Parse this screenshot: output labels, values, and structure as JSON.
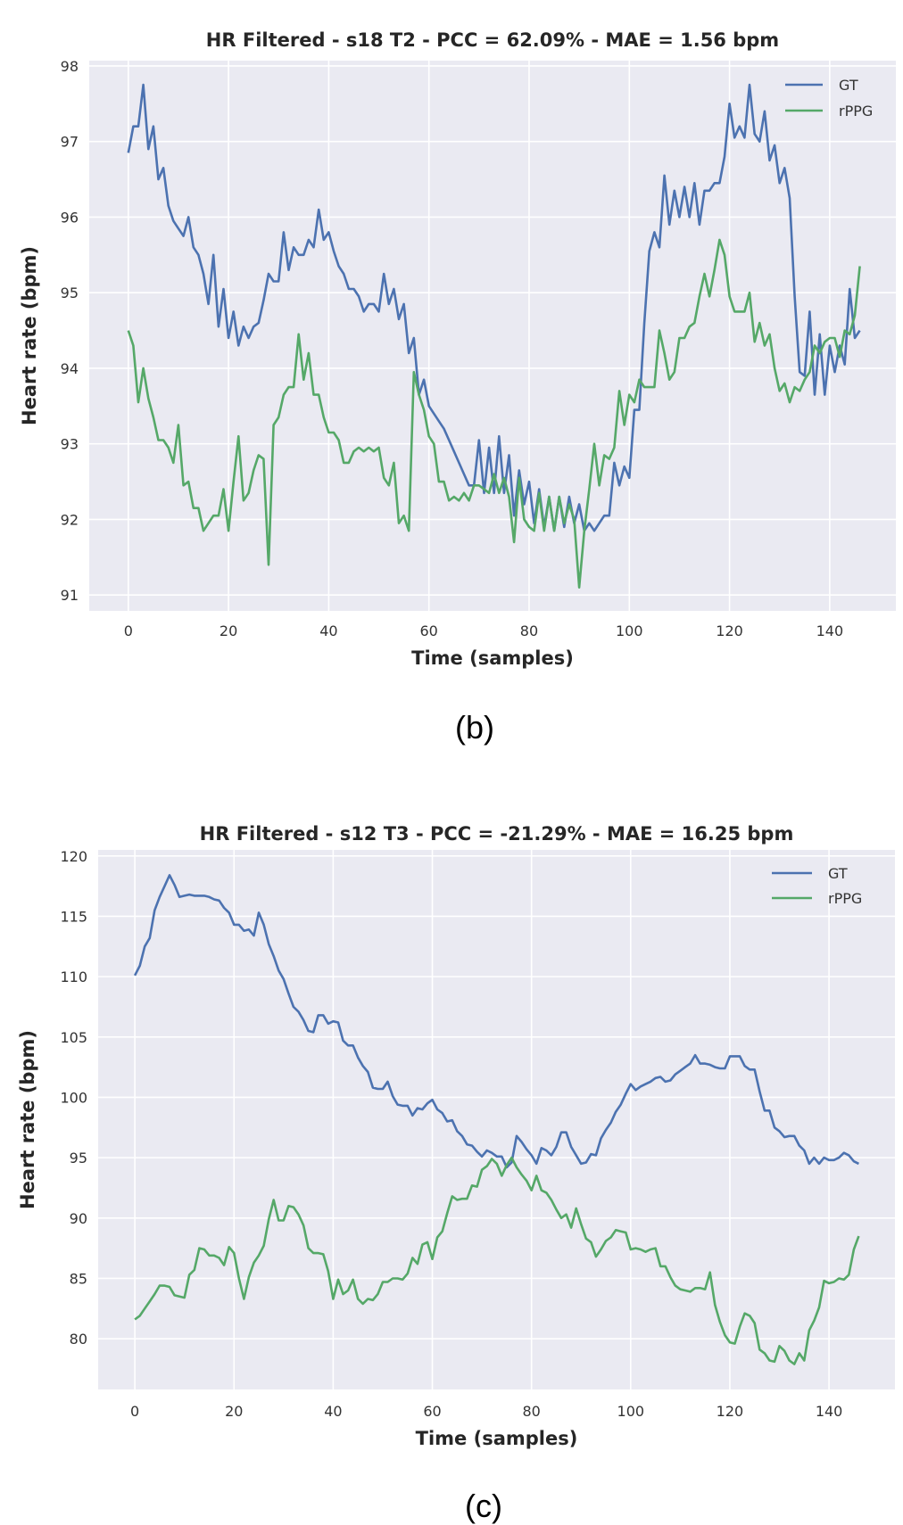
{
  "chart_data": [
    {
      "type": "line",
      "title": "HR Filtered - s18 T2 - PCC = 62.09% - MAE = 1.56 bpm",
      "xlabel": "Time (samples)",
      "ylabel": "Heart rate (bpm)",
      "caption": "(b)",
      "xlim": [
        -7.8,
        153.2
      ],
      "ylim": [
        90.79,
        98.07
      ],
      "xticks": [
        0,
        20,
        40,
        60,
        80,
        100,
        120,
        140
      ],
      "yticks": [
        91,
        92,
        93,
        94,
        95,
        96,
        97,
        98
      ],
      "grid": true,
      "legend": "top-right",
      "x_start": 0,
      "x_step": 1,
      "series": [
        {
          "name": "GT",
          "color": "#4c72b0",
          "values": [
            96.85,
            97.2,
            97.2,
            97.75,
            96.9,
            97.2,
            96.5,
            96.65,
            96.15,
            95.95,
            95.85,
            95.75,
            96.0,
            95.6,
            95.5,
            95.25,
            94.85,
            95.5,
            94.55,
            95.05,
            94.4,
            94.75,
            94.3,
            94.55,
            94.4,
            94.55,
            94.6,
            94.9,
            95.25,
            95.15,
            95.15,
            95.8,
            95.3,
            95.6,
            95.5,
            95.5,
            95.7,
            95.6,
            96.1,
            95.7,
            95.8,
            95.55,
            95.35,
            95.25,
            95.05,
            95.05,
            94.95,
            94.75,
            94.85,
            94.85,
            94.75,
            95.25,
            94.85,
            95.05,
            94.65,
            94.85,
            94.2,
            94.4,
            93.65,
            93.85,
            93.5,
            93.4,
            93.3,
            93.2,
            93.05,
            92.9,
            92.75,
            92.6,
            92.45,
            92.45,
            93.05,
            92.35,
            92.95,
            92.35,
            93.1,
            92.35,
            92.85,
            92.05,
            92.65,
            92.2,
            92.5,
            91.95,
            92.4,
            91.9,
            92.3,
            91.85,
            92.3,
            91.9,
            92.3,
            91.95,
            92.2,
            91.85,
            91.95,
            91.85,
            91.95,
            92.05,
            92.05,
            92.75,
            92.45,
            92.7,
            92.55,
            93.45,
            93.45,
            94.6,
            95.55,
            95.8,
            95.6,
            96.55,
            95.9,
            96.35,
            96.0,
            96.4,
            96.0,
            96.45,
            95.9,
            96.35,
            96.35,
            96.45,
            96.45,
            96.8,
            97.5,
            97.05,
            97.2,
            97.05,
            97.75,
            97.1,
            97.0,
            97.4,
            96.75,
            96.95,
            96.45,
            96.65,
            96.25,
            94.95,
            93.95,
            93.9,
            94.75,
            93.65,
            94.45,
            93.65,
            94.3,
            93.95,
            94.3,
            94.05,
            95.05,
            94.4,
            94.5
          ]
        },
        {
          "name": "rPPG",
          "color": "#55a868",
          "values": [
            94.5,
            94.3,
            93.55,
            94.0,
            93.6,
            93.35,
            93.05,
            93.05,
            92.95,
            92.75,
            93.25,
            92.45,
            92.5,
            92.15,
            92.15,
            91.85,
            91.95,
            92.05,
            92.05,
            92.4,
            91.85,
            92.5,
            93.1,
            92.25,
            92.35,
            92.65,
            92.85,
            92.8,
            91.4,
            93.25,
            93.35,
            93.65,
            93.75,
            93.75,
            94.45,
            93.85,
            94.2,
            93.65,
            93.65,
            93.35,
            93.15,
            93.15,
            93.05,
            92.75,
            92.75,
            92.9,
            92.95,
            92.9,
            92.95,
            92.9,
            92.95,
            92.55,
            92.45,
            92.75,
            91.95,
            92.05,
            91.85,
            93.95,
            93.65,
            93.45,
            93.1,
            93.0,
            92.5,
            92.5,
            92.25,
            92.3,
            92.25,
            92.35,
            92.25,
            92.45,
            92.45,
            92.4,
            92.35,
            92.6,
            92.35,
            92.55,
            92.3,
            91.7,
            92.55,
            92.0,
            91.9,
            91.85,
            92.35,
            91.85,
            92.3,
            91.85,
            92.3,
            91.95,
            92.2,
            92.0,
            91.1,
            91.85,
            92.4,
            93.0,
            92.45,
            92.85,
            92.8,
            92.95,
            93.7,
            93.25,
            93.65,
            93.55,
            93.85,
            93.75,
            93.75,
            93.75,
            94.5,
            94.2,
            93.85,
            93.95,
            94.4,
            94.4,
            94.55,
            94.6,
            94.95,
            95.25,
            94.95,
            95.3,
            95.7,
            95.5,
            94.95,
            94.75,
            94.75,
            94.75,
            95.0,
            94.35,
            94.6,
            94.3,
            94.45,
            94.0,
            93.7,
            93.8,
            93.55,
            93.75,
            93.7,
            93.85,
            93.95,
            94.3,
            94.2,
            94.35,
            94.4,
            94.4,
            94.15,
            94.5,
            94.45,
            94.7,
            95.35
          ]
        }
      ]
    },
    {
      "type": "line",
      "title": "HR Filtered - s12 T3 - PCC = -21.29% - MAE = 16.25 bpm",
      "xlabel": "Time (samples)",
      "ylabel": "Heart rate (bpm)",
      "caption": "(c)",
      "xlim": [
        -7.4,
        153.3
      ],
      "ylim": [
        75.8,
        120.5
      ],
      "xticks": [
        0,
        20,
        40,
        60,
        80,
        100,
        120,
        140
      ],
      "yticks": [
        80,
        85,
        90,
        95,
        100,
        105,
        110,
        115,
        120
      ],
      "grid": true,
      "legend": "top-right",
      "x_start": 0,
      "x_step": 1,
      "series": [
        {
          "name": "GT",
          "color": "#4c72b0",
          "values": [
            110.1,
            110.9,
            112.5,
            113.2,
            115.5,
            116.6,
            117.5,
            118.4,
            117.6,
            116.6,
            116.7,
            116.8,
            116.7,
            116.7,
            116.7,
            116.6,
            116.4,
            116.3,
            115.7,
            115.3,
            114.3,
            114.3,
            113.8,
            113.9,
            113.4,
            115.3,
            114.3,
            112.7,
            111.7,
            110.5,
            109.8,
            108.6,
            107.5,
            107.1,
            106.4,
            105.5,
            105.4,
            106.8,
            106.8,
            106.1,
            106.3,
            106.2,
            104.7,
            104.3,
            104.3,
            103.3,
            102.6,
            102.1,
            100.8,
            100.7,
            100.7,
            101.3,
            100.1,
            99.4,
            99.3,
            99.3,
            98.5,
            99.1,
            99.0,
            99.5,
            99.8,
            99.0,
            98.7,
            98.0,
            98.1,
            97.2,
            96.8,
            96.1,
            96.0,
            95.5,
            95.1,
            95.6,
            95.4,
            95.1,
            95.1,
            94.2,
            94.6,
            96.8,
            96.3,
            95.7,
            95.2,
            94.5,
            95.8,
            95.6,
            95.2,
            95.9,
            97.1,
            97.1,
            95.9,
            95.2,
            94.5,
            94.6,
            95.3,
            95.2,
            96.6,
            97.3,
            97.9,
            98.8,
            99.4,
            100.3,
            101.1,
            100.6,
            100.9,
            101.1,
            101.3,
            101.6,
            101.7,
            101.3,
            101.4,
            101.9,
            102.2,
            102.5,
            102.8,
            103.5,
            102.8,
            102.8,
            102.7,
            102.5,
            102.4,
            102.4,
            103.4,
            103.4,
            103.4,
            102.6,
            102.3,
            102.3,
            100.5,
            98.9,
            98.9,
            97.5,
            97.2,
            96.7,
            96.8,
            96.8,
            96.0,
            95.6,
            94.5,
            95.0,
            94.5,
            95.0,
            94.8,
            94.8,
            95.0,
            95.4,
            95.2,
            94.7,
            94.5
          ]
        },
        {
          "name": "rPPG",
          "color": "#55a868",
          "values": [
            81.6,
            81.9,
            82.5,
            83.1,
            83.7,
            84.4,
            84.4,
            84.3,
            83.6,
            83.5,
            83.4,
            85.3,
            85.7,
            87.5,
            87.4,
            86.9,
            86.9,
            86.7,
            86.1,
            87.6,
            87.1,
            85.0,
            83.3,
            85.1,
            86.3,
            86.9,
            87.7,
            89.9,
            91.5,
            89.8,
            89.8,
            91.0,
            90.9,
            90.3,
            89.4,
            87.5,
            87.1,
            87.1,
            87.0,
            85.6,
            83.3,
            84.9,
            83.7,
            84.0,
            84.9,
            83.3,
            82.9,
            83.3,
            83.2,
            83.7,
            84.7,
            84.7,
            85.0,
            85.0,
            84.9,
            85.4,
            86.7,
            86.2,
            87.8,
            88.0,
            86.6,
            88.4,
            88.9,
            90.4,
            91.8,
            91.5,
            91.6,
            91.6,
            92.7,
            92.6,
            94.0,
            94.3,
            94.9,
            94.5,
            93.5,
            94.4,
            95.0,
            94.2,
            93.6,
            93.1,
            92.3,
            93.5,
            92.3,
            92.1,
            91.5,
            90.7,
            90.0,
            90.3,
            89.2,
            90.8,
            89.5,
            88.3,
            88.0,
            86.8,
            87.4,
            88.1,
            88.4,
            89.0,
            88.9,
            88.8,
            87.4,
            87.5,
            87.4,
            87.2,
            87.4,
            87.5,
            86.0,
            86.0,
            85.1,
            84.4,
            84.1,
            84.0,
            83.9,
            84.2,
            84.2,
            84.1,
            85.5,
            82.8,
            81.4,
            80.3,
            79.7,
            79.6,
            81.0,
            82.1,
            81.9,
            81.3,
            79.1,
            78.8,
            78.2,
            78.1,
            79.4,
            79.0,
            78.2,
            77.9,
            78.8,
            78.2,
            80.7,
            81.5,
            82.6,
            84.8,
            84.6,
            84.7,
            85.0,
            84.9,
            85.3,
            87.4,
            88.5
          ]
        }
      ]
    }
  ]
}
